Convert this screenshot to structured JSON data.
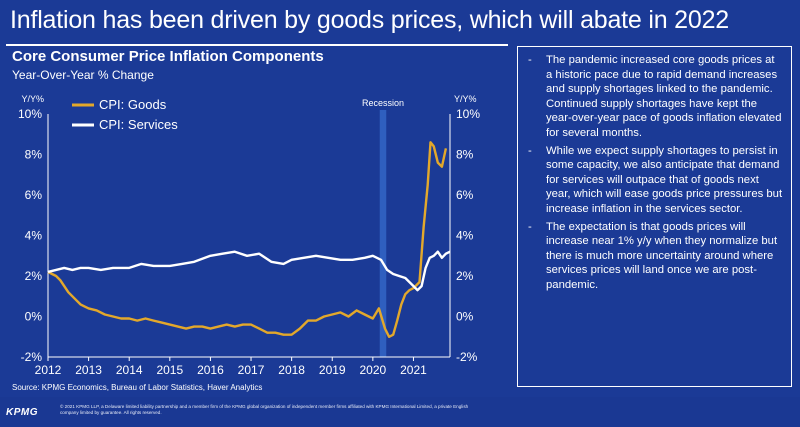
{
  "headline": "Inflation has been driven by goods prices, which will abate in 2022",
  "chart_title": "Core Consumer Price Inflation Components",
  "chart_subtitle": "Year-Over-Year % Change",
  "source": "Source: KPMG Economics, Bureau of Labor Statistics, Haver Analytics",
  "logo": "KPMG",
  "disclaimer": "© 2021 KPMG LLP, a Delaware limited liability partnership and a member firm of the KPMG global organization of independent member firms affiliated with KPMG International Limited, a private English company limited by guarantee. All rights reserved.",
  "bullets": [
    {
      "dash": "-",
      "text": "The pandemic increased core goods prices at a historic pace due to rapid demand increases and supply shortages linked to the pandemic. Continued supply shortages have kept the year-over-year pace of goods inflation elevated for several months."
    },
    {
      "dash": "-",
      "text": "While we expect supply shortages to persist in some capacity, we also anticipate that demand for services will outpace that of goods next year, which will ease goods price pressures but increase inflation in the services sector."
    },
    {
      "dash": "-",
      "text": "The expectation is that goods prices will increase near 1% y/y when they normalize but there is much more uncertainty around where services prices will land once we are post-pandemic."
    }
  ],
  "colors": {
    "background": "#1b3a96",
    "goods": "#e3a82b",
    "services": "#ffffff",
    "recession": "#2f5fbf"
  },
  "chart_data": {
    "type": "line",
    "y_axis_unit_left": "Y/Y%",
    "y_axis_unit_right": "Y/Y%",
    "ylim": [
      -2,
      10
    ],
    "yticks": [
      "10%",
      "8%",
      "6%",
      "4%",
      "2%",
      "0%",
      "-2%"
    ],
    "xlim": [
      2012.0,
      2021.9
    ],
    "xticks": [
      "2012",
      "2013",
      "2014",
      "2015",
      "2016",
      "2017",
      "2018",
      "2019",
      "2020",
      "2021"
    ],
    "recession_label": "Recession",
    "recession": [
      2020.17,
      2020.33
    ],
    "legend_position": "top-left",
    "series": [
      {
        "name": "CPI: Goods",
        "color": "#e3a82b",
        "points": [
          [
            2012.0,
            2.2
          ],
          [
            2012.1,
            2.1
          ],
          [
            2012.2,
            2.0
          ],
          [
            2012.3,
            1.8
          ],
          [
            2012.4,
            1.5
          ],
          [
            2012.5,
            1.2
          ],
          [
            2012.6,
            1.0
          ],
          [
            2012.7,
            0.8
          ],
          [
            2012.8,
            0.6
          ],
          [
            2012.9,
            0.5
          ],
          [
            2013.0,
            0.4
          ],
          [
            2013.2,
            0.3
          ],
          [
            2013.4,
            0.1
          ],
          [
            2013.6,
            0.0
          ],
          [
            2013.8,
            -0.1
          ],
          [
            2014.0,
            -0.1
          ],
          [
            2014.2,
            -0.2
          ],
          [
            2014.4,
            -0.1
          ],
          [
            2014.6,
            -0.2
          ],
          [
            2014.8,
            -0.3
          ],
          [
            2015.0,
            -0.4
          ],
          [
            2015.2,
            -0.5
          ],
          [
            2015.4,
            -0.6
          ],
          [
            2015.6,
            -0.5
          ],
          [
            2015.8,
            -0.5
          ],
          [
            2016.0,
            -0.6
          ],
          [
            2016.2,
            -0.5
          ],
          [
            2016.4,
            -0.4
          ],
          [
            2016.6,
            -0.5
          ],
          [
            2016.8,
            -0.4
          ],
          [
            2017.0,
            -0.4
          ],
          [
            2017.2,
            -0.6
          ],
          [
            2017.4,
            -0.8
          ],
          [
            2017.6,
            -0.8
          ],
          [
            2017.8,
            -0.9
          ],
          [
            2018.0,
            -0.9
          ],
          [
            2018.2,
            -0.6
          ],
          [
            2018.4,
            -0.2
          ],
          [
            2018.6,
            -0.2
          ],
          [
            2018.8,
            0.0
          ],
          [
            2019.0,
            0.1
          ],
          [
            2019.2,
            0.2
          ],
          [
            2019.4,
            0.0
          ],
          [
            2019.6,
            0.3
          ],
          [
            2019.8,
            0.1
          ],
          [
            2020.0,
            -0.1
          ],
          [
            2020.15,
            0.4
          ],
          [
            2020.3,
            -0.6
          ],
          [
            2020.4,
            -1.0
          ],
          [
            2020.5,
            -0.9
          ],
          [
            2020.6,
            -0.2
          ],
          [
            2020.7,
            0.6
          ],
          [
            2020.8,
            1.1
          ],
          [
            2020.9,
            1.3
          ],
          [
            2021.0,
            1.4
          ],
          [
            2021.15,
            1.7
          ],
          [
            2021.25,
            4.4
          ],
          [
            2021.35,
            6.5
          ],
          [
            2021.42,
            8.6
          ],
          [
            2021.5,
            8.4
          ],
          [
            2021.6,
            7.6
          ],
          [
            2021.7,
            7.4
          ],
          [
            2021.8,
            8.3
          ]
        ]
      },
      {
        "name": "CPI: Services",
        "color": "#ffffff",
        "points": [
          [
            2012.0,
            2.2
          ],
          [
            2012.2,
            2.3
          ],
          [
            2012.4,
            2.4
          ],
          [
            2012.6,
            2.3
          ],
          [
            2012.8,
            2.4
          ],
          [
            2013.0,
            2.4
          ],
          [
            2013.3,
            2.3
          ],
          [
            2013.6,
            2.4
          ],
          [
            2014.0,
            2.4
          ],
          [
            2014.3,
            2.6
          ],
          [
            2014.6,
            2.5
          ],
          [
            2015.0,
            2.5
          ],
          [
            2015.3,
            2.6
          ],
          [
            2015.6,
            2.7
          ],
          [
            2016.0,
            3.0
          ],
          [
            2016.3,
            3.1
          ],
          [
            2016.6,
            3.2
          ],
          [
            2016.9,
            3.0
          ],
          [
            2017.2,
            3.1
          ],
          [
            2017.5,
            2.7
          ],
          [
            2017.8,
            2.6
          ],
          [
            2018.0,
            2.8
          ],
          [
            2018.3,
            2.9
          ],
          [
            2018.6,
            3.0
          ],
          [
            2018.9,
            2.9
          ],
          [
            2019.2,
            2.8
          ],
          [
            2019.5,
            2.8
          ],
          [
            2019.8,
            2.9
          ],
          [
            2020.0,
            3.0
          ],
          [
            2020.2,
            2.8
          ],
          [
            2020.35,
            2.3
          ],
          [
            2020.5,
            2.1
          ],
          [
            2020.65,
            2.0
          ],
          [
            2020.8,
            1.9
          ],
          [
            2021.0,
            1.5
          ],
          [
            2021.1,
            1.3
          ],
          [
            2021.2,
            1.5
          ],
          [
            2021.3,
            2.4
          ],
          [
            2021.4,
            2.9
          ],
          [
            2021.5,
            3.0
          ],
          [
            2021.6,
            3.2
          ],
          [
            2021.7,
            2.9
          ],
          [
            2021.8,
            3.1
          ],
          [
            2021.9,
            3.2
          ]
        ]
      }
    ]
  }
}
